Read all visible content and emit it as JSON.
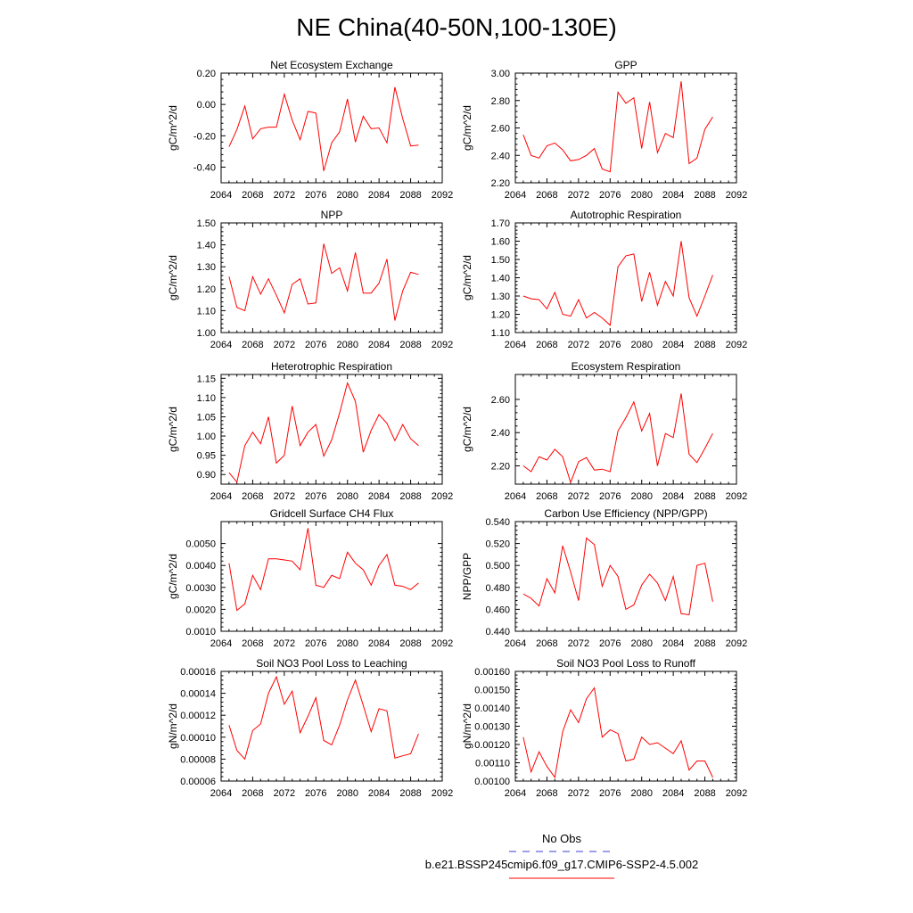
{
  "figure": {
    "title": "NE China(40-50N,100-130E)",
    "legend": {
      "entries": [
        {
          "label": "No Obs",
          "color": "#3b3bd6",
          "style": "dashed"
        },
        {
          "label": "b.e21.BSSP245cmip6.f09_g17.CMIP6-SSP2-4.5.002",
          "color": "#ff0000",
          "style": "solid"
        }
      ]
    }
  },
  "chart_data": [
    {
      "type": "line",
      "title": "Net Ecosystem Exchange",
      "ylabel": "gC/m^2/d",
      "xlim": [
        2064,
        2092
      ],
      "ylim": [
        -0.5,
        0.2
      ],
      "xticks": [
        2064,
        2068,
        2072,
        2076,
        2080,
        2084,
        2088,
        2092
      ],
      "yticks": [
        -0.4,
        -0.2,
        0.0,
        0.2
      ],
      "ytick_labels": [
        "-0.40",
        "-0.20",
        "0.00",
        "0.20"
      ],
      "series": [
        {
          "color": "#ff0000",
          "x": [
            2065,
            2066,
            2067,
            2068,
            2069,
            2070,
            2071,
            2072,
            2073,
            2074,
            2075,
            2076,
            2077,
            2078,
            2079,
            2080,
            2081,
            2082,
            2083,
            2084,
            2085,
            2086,
            2087,
            2088,
            2089
          ],
          "values": [
            -0.27,
            -0.16,
            -0.01,
            -0.22,
            -0.155,
            -0.145,
            -0.145,
            0.065,
            -0.1,
            -0.225,
            -0.045,
            -0.055,
            -0.425,
            -0.245,
            -0.175,
            0.035,
            -0.24,
            -0.075,
            -0.155,
            -0.15,
            -0.245,
            0.11,
            -0.09,
            -0.265,
            -0.26
          ]
        }
      ]
    },
    {
      "type": "line",
      "title": "GPP",
      "ylabel": "gC/m^2/d",
      "xlim": [
        2064,
        2092
      ],
      "ylim": [
        2.2,
        3.0
      ],
      "xticks": [
        2064,
        2068,
        2072,
        2076,
        2080,
        2084,
        2088,
        2092
      ],
      "yticks": [
        2.2,
        2.4,
        2.6,
        2.8,
        3.0
      ],
      "ytick_labels": [
        "2.20",
        "2.40",
        "2.60",
        "2.80",
        "3.00"
      ],
      "series": [
        {
          "color": "#ff0000",
          "x": [
            2065,
            2066,
            2067,
            2068,
            2069,
            2070,
            2071,
            2072,
            2073,
            2074,
            2075,
            2076,
            2077,
            2078,
            2079,
            2080,
            2081,
            2082,
            2083,
            2084,
            2085,
            2086,
            2087,
            2088,
            2089
          ],
          "values": [
            2.55,
            2.4,
            2.38,
            2.47,
            2.49,
            2.44,
            2.36,
            2.37,
            2.4,
            2.45,
            2.3,
            2.28,
            2.86,
            2.78,
            2.82,
            2.45,
            2.79,
            2.42,
            2.56,
            2.53,
            2.94,
            2.34,
            2.38,
            2.59,
            2.68
          ]
        }
      ]
    },
    {
      "type": "line",
      "title": "NPP",
      "ylabel": "gC/m^2/d",
      "xlim": [
        2064,
        2092
      ],
      "ylim": [
        1.0,
        1.5
      ],
      "xticks": [
        2064,
        2068,
        2072,
        2076,
        2080,
        2084,
        2088,
        2092
      ],
      "yticks": [
        1.0,
        1.1,
        1.2,
        1.3,
        1.4,
        1.5
      ],
      "ytick_labels": [
        "1.00",
        "1.10",
        "1.20",
        "1.30",
        "1.40",
        "1.50"
      ],
      "series": [
        {
          "color": "#ff0000",
          "x": [
            2065,
            2066,
            2067,
            2068,
            2069,
            2070,
            2071,
            2072,
            2073,
            2074,
            2075,
            2076,
            2077,
            2078,
            2079,
            2080,
            2081,
            2082,
            2083,
            2084,
            2085,
            2086,
            2087,
            2088,
            2089
          ],
          "values": [
            1.255,
            1.115,
            1.1,
            1.255,
            1.175,
            1.245,
            1.17,
            1.09,
            1.22,
            1.245,
            1.13,
            1.135,
            1.405,
            1.27,
            1.295,
            1.19,
            1.365,
            1.18,
            1.18,
            1.225,
            1.335,
            1.055,
            1.19,
            1.275,
            1.265
          ]
        }
      ]
    },
    {
      "type": "line",
      "title": "Autotrophic Respiration",
      "ylabel": "gC/m^2/d",
      "xlim": [
        2064,
        2092
      ],
      "ylim": [
        1.1,
        1.7
      ],
      "xticks": [
        2064,
        2068,
        2072,
        2076,
        2080,
        2084,
        2088,
        2092
      ],
      "yticks": [
        1.1,
        1.2,
        1.3,
        1.4,
        1.5,
        1.6,
        1.7
      ],
      "ytick_labels": [
        "1.10",
        "1.20",
        "1.30",
        "1.40",
        "1.50",
        "1.60",
        "1.70"
      ],
      "series": [
        {
          "color": "#ff0000",
          "x": [
            2065,
            2066,
            2067,
            2068,
            2069,
            2070,
            2071,
            2072,
            2073,
            2074,
            2075,
            2076,
            2077,
            2078,
            2079,
            2080,
            2081,
            2082,
            2083,
            2084,
            2085,
            2086,
            2087,
            2088,
            2089
          ],
          "values": [
            1.3,
            1.285,
            1.28,
            1.23,
            1.32,
            1.2,
            1.19,
            1.28,
            1.18,
            1.21,
            1.18,
            1.14,
            1.46,
            1.52,
            1.53,
            1.27,
            1.43,
            1.25,
            1.38,
            1.3,
            1.6,
            1.29,
            1.19,
            1.3,
            1.415
          ]
        }
      ]
    },
    {
      "type": "line",
      "title": "Heterotrophic Respiration",
      "ylabel": "gC/m^2/d",
      "xlim": [
        2064,
        2092
      ],
      "ylim": [
        0.875,
        1.16
      ],
      "xticks": [
        2064,
        2068,
        2072,
        2076,
        2080,
        2084,
        2088,
        2092
      ],
      "yticks": [
        0.9,
        0.95,
        1.0,
        1.05,
        1.1,
        1.15
      ],
      "ytick_labels": [
        "0.90",
        "0.95",
        "1.00",
        "1.05",
        "1.10",
        "1.15"
      ],
      "series": [
        {
          "color": "#ff0000",
          "x": [
            2065,
            2066,
            2067,
            2068,
            2069,
            2070,
            2071,
            2072,
            2073,
            2074,
            2075,
            2076,
            2077,
            2078,
            2079,
            2080,
            2081,
            2082,
            2083,
            2084,
            2085,
            2086,
            2087,
            2088,
            2089
          ],
          "values": [
            0.905,
            0.88,
            0.975,
            1.01,
            0.98,
            1.05,
            0.93,
            0.95,
            1.078,
            0.975,
            1.01,
            1.03,
            0.948,
            0.99,
            1.06,
            1.138,
            1.09,
            0.958,
            1.015,
            1.056,
            1.033,
            0.988,
            1.03,
            0.993,
            0.975
          ]
        }
      ]
    },
    {
      "type": "line",
      "title": "Ecosystem Respiration",
      "ylabel": "gC/m^2/d",
      "xlim": [
        2064,
        2092
      ],
      "ylim": [
        2.09,
        2.75
      ],
      "xticks": [
        2064,
        2068,
        2072,
        2076,
        2080,
        2084,
        2088,
        2092
      ],
      "yticks": [
        2.2,
        2.4,
        2.6
      ],
      "ytick_labels": [
        "2.20",
        "2.40",
        "2.60"
      ],
      "series": [
        {
          "color": "#ff0000",
          "x": [
            2065,
            2066,
            2067,
            2068,
            2069,
            2070,
            2071,
            2072,
            2073,
            2074,
            2075,
            2076,
            2077,
            2078,
            2079,
            2080,
            2081,
            2082,
            2083,
            2084,
            2085,
            2086,
            2087,
            2088,
            2089
          ],
          "values": [
            2.2,
            2.165,
            2.255,
            2.235,
            2.3,
            2.255,
            2.1,
            2.225,
            2.25,
            2.175,
            2.18,
            2.165,
            2.41,
            2.49,
            2.585,
            2.41,
            2.515,
            2.2,
            2.395,
            2.37,
            2.635,
            2.27,
            2.22,
            2.305,
            2.395
          ]
        }
      ]
    },
    {
      "type": "line",
      "title": "Gridcell Surface CH4 Flux",
      "ylabel": "gC/m^2/d",
      "xlim": [
        2064,
        2092
      ],
      "ylim": [
        0.001,
        0.006
      ],
      "xticks": [
        2064,
        2068,
        2072,
        2076,
        2080,
        2084,
        2088,
        2092
      ],
      "yticks": [
        0.001,
        0.002,
        0.003,
        0.004,
        0.005
      ],
      "ytick_labels": [
        "0.0010",
        "0.0020",
        "0.0030",
        "0.0040",
        "0.0050"
      ],
      "series": [
        {
          "color": "#ff0000",
          "x": [
            2065,
            2066,
            2067,
            2068,
            2069,
            2070,
            2071,
            2072,
            2073,
            2074,
            2075,
            2076,
            2077,
            2078,
            2079,
            2080,
            2081,
            2082,
            2083,
            2084,
            2085,
            2086,
            2087,
            2088,
            2089
          ],
          "values": [
            0.0041,
            0.00195,
            0.00225,
            0.00355,
            0.0029,
            0.0043,
            0.0043,
            0.00425,
            0.0042,
            0.0038,
            0.0057,
            0.0031,
            0.003,
            0.00355,
            0.0034,
            0.0046,
            0.0041,
            0.0038,
            0.0031,
            0.004,
            0.0045,
            0.0031,
            0.00305,
            0.0029,
            0.0032
          ]
        }
      ]
    },
    {
      "type": "line",
      "title": "Carbon Use Efficiency (NPP/GPP)",
      "ylabel": "NPP/GPP",
      "xlim": [
        2064,
        2092
      ],
      "ylim": [
        0.44,
        0.54
      ],
      "xticks": [
        2064,
        2068,
        2072,
        2076,
        2080,
        2084,
        2088,
        2092
      ],
      "yticks": [
        0.44,
        0.46,
        0.48,
        0.5,
        0.52,
        0.54
      ],
      "ytick_labels": [
        "0.440",
        "0.460",
        "0.480",
        "0.500",
        "0.520",
        "0.540"
      ],
      "series": [
        {
          "color": "#ff0000",
          "x": [
            2065,
            2066,
            2067,
            2068,
            2069,
            2070,
            2071,
            2072,
            2073,
            2074,
            2075,
            2076,
            2077,
            2078,
            2079,
            2080,
            2081,
            2082,
            2083,
            2084,
            2085,
            2086,
            2087,
            2088,
            2089
          ],
          "values": [
            0.474,
            0.47,
            0.463,
            0.488,
            0.475,
            0.518,
            0.494,
            0.468,
            0.525,
            0.519,
            0.481,
            0.5,
            0.49,
            0.46,
            0.464,
            0.482,
            0.492,
            0.484,
            0.468,
            0.49,
            0.456,
            0.455,
            0.5,
            0.502,
            0.467
          ]
        }
      ]
    },
    {
      "type": "line",
      "title": "Soil NO3 Pool Loss to Leaching",
      "ylabel": "gN/m^2/d",
      "xlim": [
        2064,
        2092
      ],
      "ylim": [
        6e-05,
        0.00016
      ],
      "xticks": [
        2064,
        2068,
        2072,
        2076,
        2080,
        2084,
        2088,
        2092
      ],
      "yticks": [
        6e-05,
        8e-05,
        0.0001,
        0.00012,
        0.00014,
        0.00016
      ],
      "ytick_labels": [
        "0.00006",
        "0.00008",
        "0.00010",
        "0.00012",
        "0.00014",
        "0.00016"
      ],
      "series": [
        {
          "color": "#ff0000",
          "x": [
            2065,
            2066,
            2067,
            2068,
            2069,
            2070,
            2071,
            2072,
            2073,
            2074,
            2075,
            2076,
            2077,
            2078,
            2079,
            2080,
            2081,
            2082,
            2083,
            2084,
            2085,
            2086,
            2087,
            2088,
            2089
          ],
          "values": [
            0.000111,
            8.8e-05,
            8e-05,
            0.000106,
            0.000112,
            0.00014,
            0.000155,
            0.00013,
            0.000142,
            0.000104,
            0.000119,
            0.000136,
            9.7e-05,
            9.3e-05,
            0.000111,
            0.000134,
            0.000152,
            0.000129,
            0.000105,
            0.000126,
            0.000124,
            8.1e-05,
            8.3e-05,
            8.5e-05,
            0.000103
          ]
        }
      ]
    },
    {
      "type": "line",
      "title": "Soil NO3 Pool Loss to Runoff",
      "ylabel": "gN/m^2/d",
      "xlim": [
        2064,
        2092
      ],
      "ylim": [
        0.001,
        0.0016
      ],
      "xticks": [
        2064,
        2068,
        2072,
        2076,
        2080,
        2084,
        2088,
        2092
      ],
      "yticks": [
        0.001,
        0.0011,
        0.0012,
        0.0013,
        0.0014,
        0.0015,
        0.0016
      ],
      "ytick_labels": [
        "0.00100",
        "0.00110",
        "0.00120",
        "0.00130",
        "0.00140",
        "0.00150",
        "0.00160"
      ],
      "series": [
        {
          "color": "#ff0000",
          "x": [
            2065,
            2066,
            2067,
            2068,
            2069,
            2070,
            2071,
            2072,
            2073,
            2074,
            2075,
            2076,
            2077,
            2078,
            2079,
            2080,
            2081,
            2082,
            2083,
            2084,
            2085,
            2086,
            2087,
            2088,
            2089
          ],
          "values": [
            0.00124,
            0.00105,
            0.00116,
            0.00108,
            0.00102,
            0.00127,
            0.00139,
            0.00132,
            0.00145,
            0.00151,
            0.00124,
            0.00128,
            0.00126,
            0.00111,
            0.00112,
            0.00124,
            0.0012,
            0.00121,
            0.00118,
            0.00115,
            0.00122,
            0.00106,
            0.00111,
            0.00111,
            0.00102
          ]
        }
      ]
    }
  ]
}
